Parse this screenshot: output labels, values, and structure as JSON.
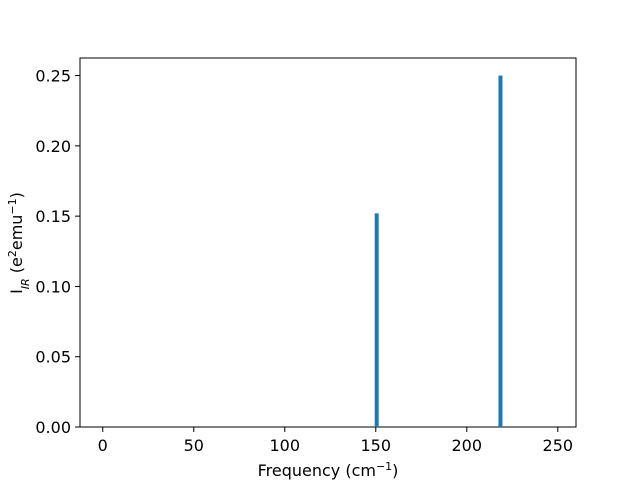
{
  "chart_data": {
    "type": "bar",
    "title": "",
    "xlabel": {
      "base": "Frequency (cm",
      "sup": "−1",
      "tail": ")"
    },
    "ylabel": {
      "base": "I",
      "sub": "IR",
      "mid": " (e",
      "sup1": "2",
      "mid2": "emu",
      "sup2": "−1",
      "tail": ")"
    },
    "xlim": [
      -12.5,
      260
    ],
    "ylim": [
      0,
      0.2625
    ],
    "x_ticks": [
      0,
      50,
      100,
      150,
      200,
      250
    ],
    "y_ticks": [
      0.0,
      0.05,
      0.1,
      0.15,
      0.2,
      0.25
    ],
    "y_tick_labels": [
      "0.00",
      "0.05",
      "0.10",
      "0.15",
      "0.20",
      "0.25"
    ],
    "grid": false,
    "bar_color": "#1f77b4",
    "series": [
      {
        "x": [
          0,
          0,
          0,
          150.5,
          218.5
        ],
        "values": [
          0,
          0,
          0,
          0.152,
          0.25
        ]
      }
    ]
  }
}
